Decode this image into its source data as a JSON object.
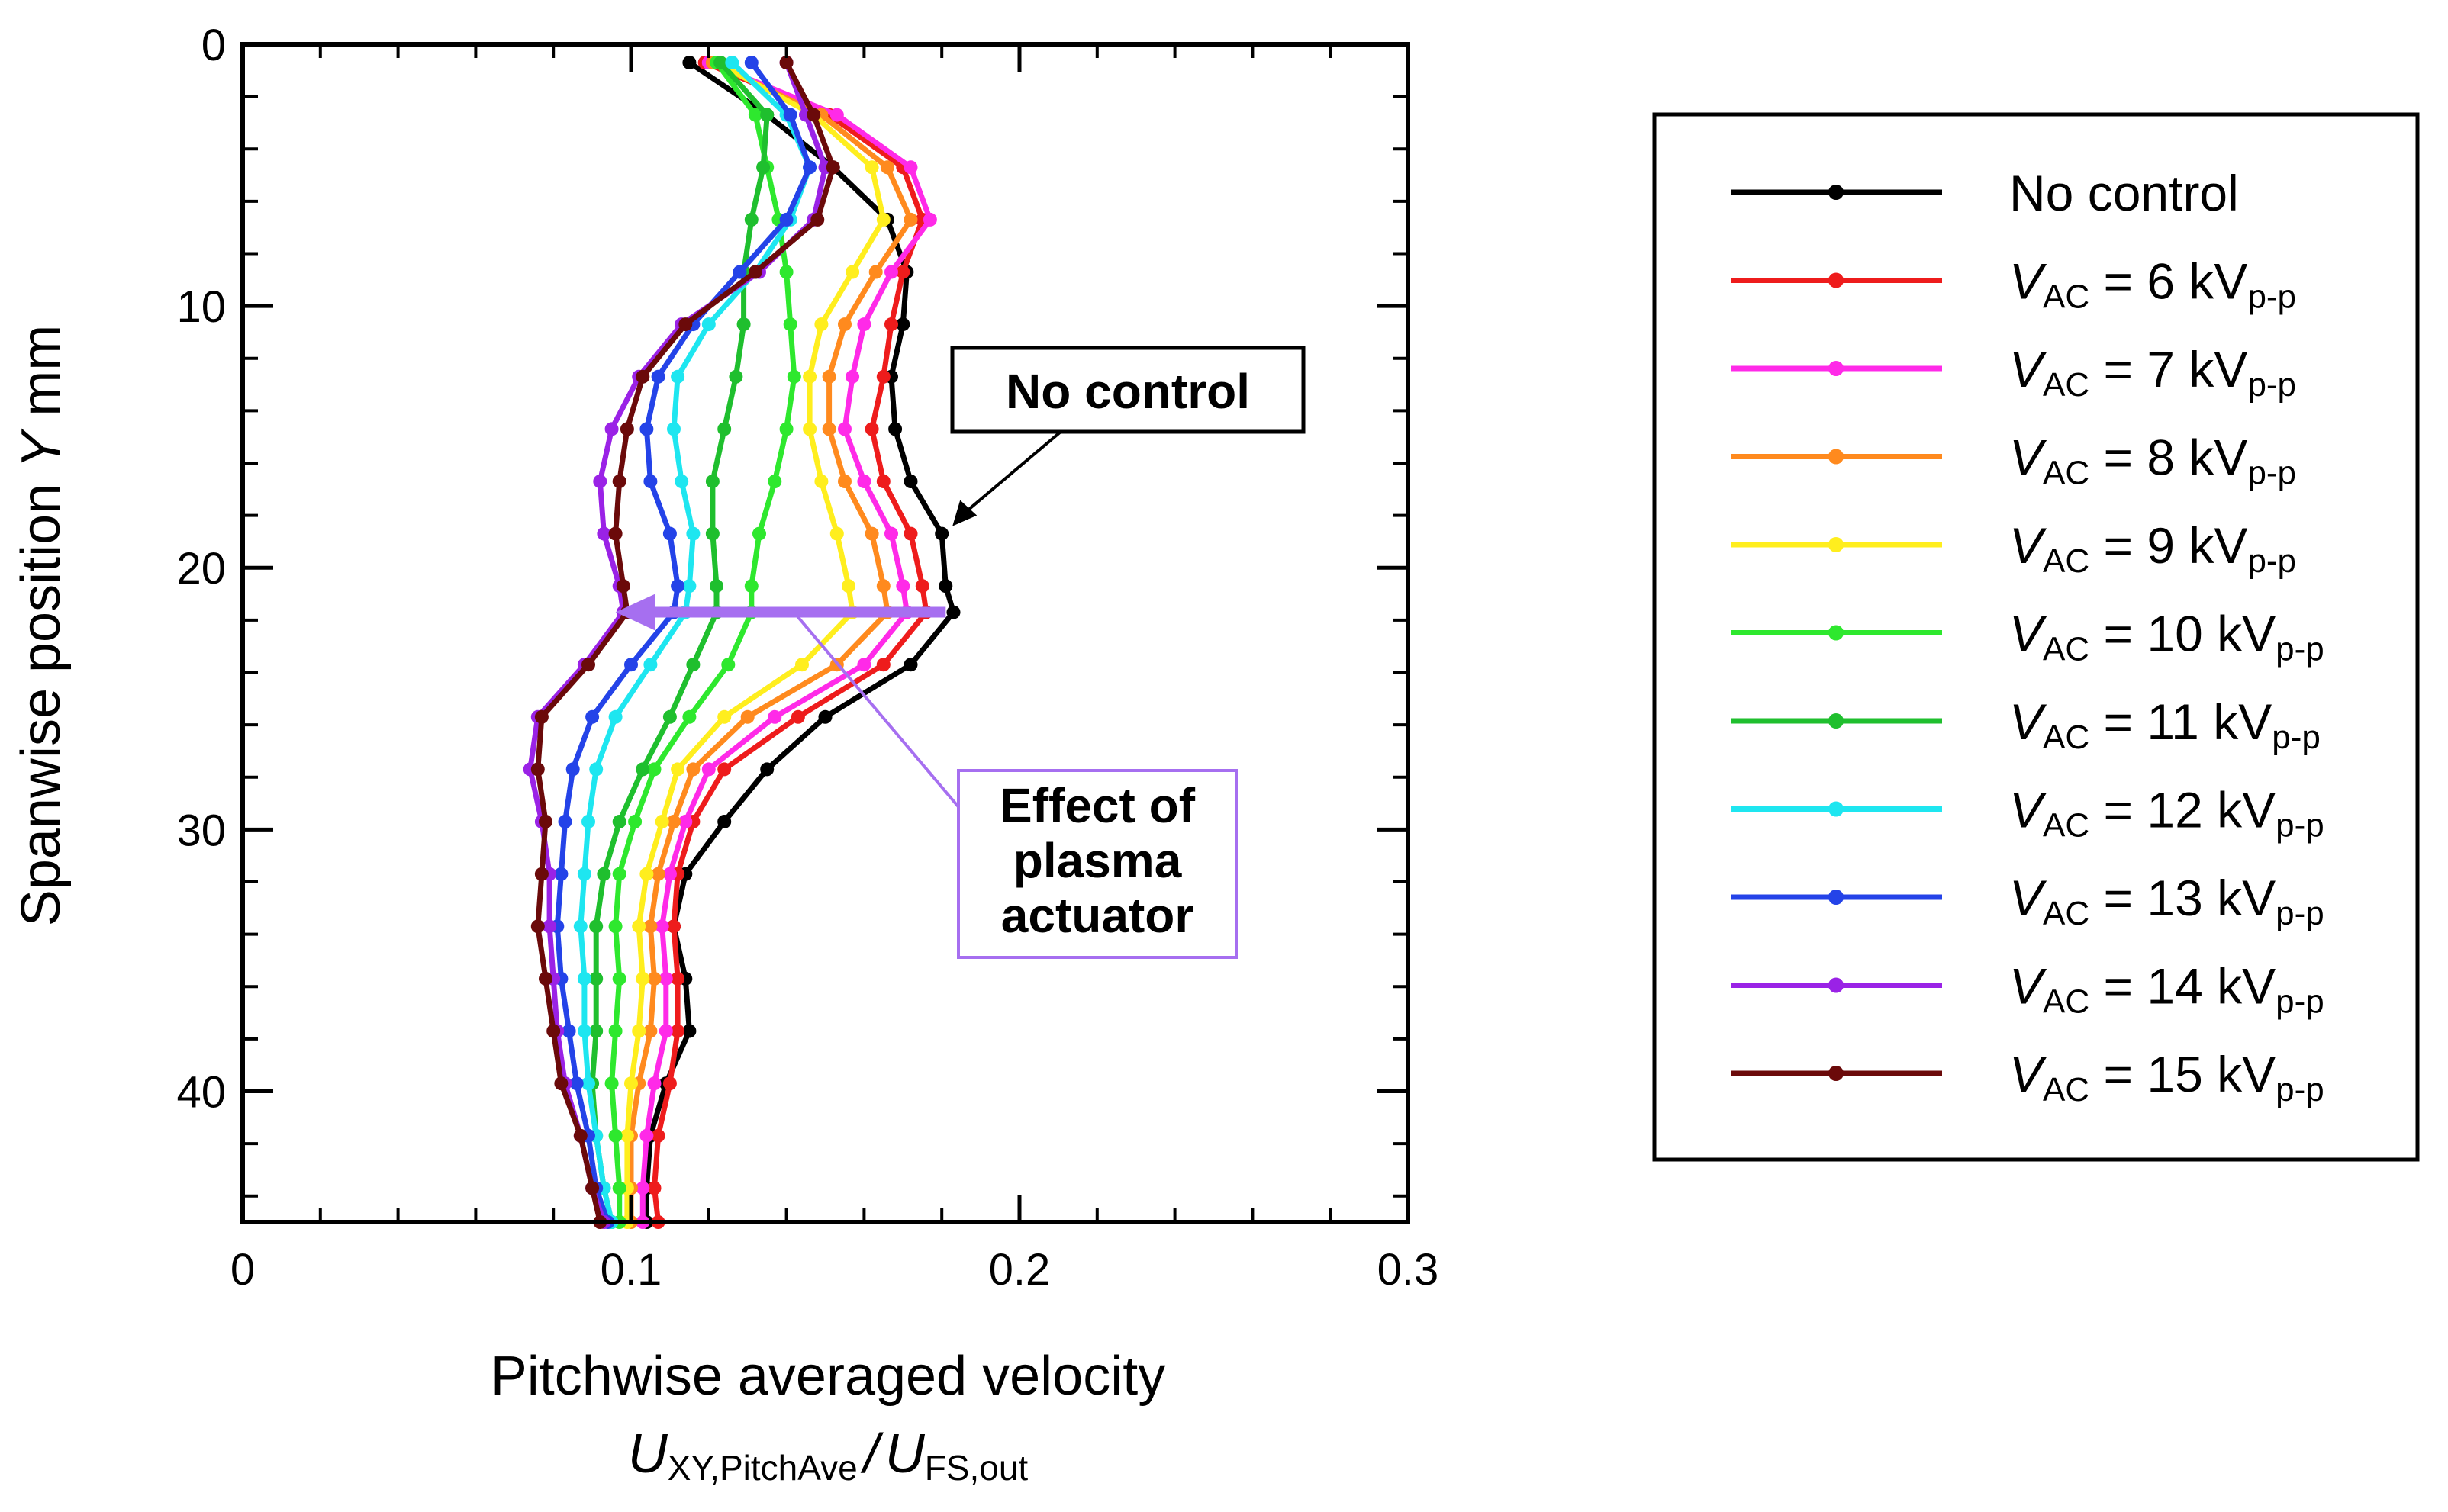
{
  "chart_data": {
    "type": "line",
    "xlabel": "Pitchwise averaged velocity",
    "xlabel_formula": {
      "var1": "U",
      "sub1": "XY,PitchAve",
      "sep": "/",
      "var2": "U",
      "sub2": "FS,out"
    },
    "ylabel": {
      "prefix": "Spanwise position ",
      "var": "Y",
      "unit": " mm"
    },
    "xlim": [
      0,
      0.3
    ],
    "ylim": [
      45,
      0
    ],
    "xticks": [
      0,
      0.1,
      0.2,
      0.3
    ],
    "xtick_labels": [
      "0",
      "0.1",
      "0.2",
      "0.3"
    ],
    "yticks": [
      0,
      10,
      20,
      30,
      40
    ],
    "ytick_labels": [
      "0",
      "10",
      "20",
      "30",
      "40"
    ],
    "legend_position": "right",
    "y": [
      0.7,
      2.7,
      4.7,
      6.7,
      8.7,
      10.7,
      12.7,
      14.7,
      16.7,
      18.7,
      20.7,
      21.7,
      23.7,
      25.7,
      27.7,
      29.7,
      31.7,
      33.7,
      35.7,
      37.7,
      39.7,
      41.7,
      43.7,
      45
    ],
    "series": [
      {
        "name": "No control",
        "voltage": "",
        "color": "#000000",
        "values": [
          0.115,
          0.135,
          0.152,
          0.166,
          0.171,
          0.17,
          0.167,
          0.168,
          0.172,
          0.18,
          0.181,
          0.183,
          0.172,
          0.15,
          0.135,
          0.124,
          0.114,
          0.111,
          0.114,
          0.115,
          0.109,
          0.105,
          0.104,
          0.104
        ]
      },
      {
        "name": "",
        "voltage": "6",
        "color": "#ee1c1c",
        "values": [
          0.119,
          0.151,
          0.17,
          0.175,
          0.17,
          0.167,
          0.165,
          0.162,
          0.165,
          0.172,
          0.175,
          0.176,
          0.165,
          0.143,
          0.124,
          0.116,
          0.112,
          0.111,
          0.112,
          0.112,
          0.11,
          0.107,
          0.106,
          0.107
        ]
      },
      {
        "name": "",
        "voltage": "7",
        "color": "#ff2ae8",
        "values": [
          0.12,
          0.153,
          0.172,
          0.177,
          0.167,
          0.16,
          0.157,
          0.155,
          0.16,
          0.167,
          0.17,
          0.171,
          0.16,
          0.137,
          0.12,
          0.114,
          0.11,
          0.108,
          0.109,
          0.109,
          0.106,
          0.104,
          0.103,
          0.103
        ]
      },
      {
        "name": "",
        "voltage": "8",
        "color": "#ff8a1e",
        "values": [
          0.121,
          0.149,
          0.166,
          0.172,
          0.163,
          0.155,
          0.151,
          0.151,
          0.155,
          0.162,
          0.165,
          0.166,
          0.153,
          0.13,
          0.116,
          0.111,
          0.107,
          0.105,
          0.106,
          0.105,
          0.102,
          0.1,
          0.1,
          0.1
        ]
      },
      {
        "name": "",
        "voltage": "9",
        "color": "#ffee1e",
        "values": [
          0.122,
          0.147,
          0.162,
          0.165,
          0.157,
          0.149,
          0.146,
          0.146,
          0.149,
          0.153,
          0.156,
          0.157,
          0.144,
          0.124,
          0.112,
          0.108,
          0.104,
          0.102,
          0.103,
          0.102,
          0.1,
          0.099,
          0.099,
          0.099
        ]
      },
      {
        "name": "",
        "voltage": "10",
        "color": "#2ee82e",
        "values": [
          0.122,
          0.132,
          0.135,
          0.138,
          0.14,
          0.141,
          0.142,
          0.14,
          0.137,
          0.133,
          0.131,
          0.131,
          0.125,
          0.115,
          0.106,
          0.101,
          0.097,
          0.096,
          0.097,
          0.096,
          0.095,
          0.096,
          0.097,
          0.097
        ]
      },
      {
        "name": "",
        "voltage": "11",
        "color": "#1fbf2e",
        "values": [
          0.123,
          0.135,
          0.134,
          0.131,
          0.129,
          0.129,
          0.127,
          0.124,
          0.121,
          0.121,
          0.122,
          0.122,
          0.116,
          0.11,
          0.103,
          0.097,
          0.093,
          0.091,
          0.091,
          0.091,
          0.09,
          0.091,
          0.093,
          0.095
        ]
      },
      {
        "name": "",
        "voltage": "12",
        "color": "#1ee6f0",
        "values": [
          0.126,
          0.14,
          0.146,
          0.141,
          0.132,
          0.12,
          0.112,
          0.111,
          0.113,
          0.116,
          0.115,
          0.114,
          0.105,
          0.096,
          0.091,
          0.089,
          0.088,
          0.087,
          0.088,
          0.088,
          0.089,
          0.091,
          0.093,
          0.095
        ]
      },
      {
        "name": "",
        "voltage": "13",
        "color": "#2443e8",
        "values": [
          0.131,
          0.141,
          0.146,
          0.14,
          0.128,
          0.116,
          0.107,
          0.104,
          0.105,
          0.11,
          0.112,
          0.111,
          0.1,
          0.09,
          0.085,
          0.083,
          0.082,
          0.081,
          0.082,
          0.084,
          0.086,
          0.089,
          0.091,
          0.094
        ]
      },
      {
        "name": "",
        "voltage": "14",
        "color": "#9a22e6",
        "values": [
          0.14,
          0.145,
          0.15,
          0.147,
          0.133,
          0.113,
          0.102,
          0.095,
          0.092,
          0.093,
          0.097,
          0.098,
          0.088,
          0.076,
          0.074,
          0.077,
          0.079,
          0.079,
          0.08,
          0.081,
          0.083,
          0.087,
          0.09,
          0.093
        ]
      },
      {
        "name": "",
        "voltage": "15",
        "color": "#6b0a0a",
        "values": [
          0.14,
          0.147,
          0.152,
          0.148,
          0.132,
          0.114,
          0.103,
          0.099,
          0.097,
          0.096,
          0.098,
          0.099,
          0.089,
          0.077,
          0.076,
          0.078,
          0.077,
          0.076,
          0.078,
          0.08,
          0.082,
          0.087,
          0.09,
          0.092
        ]
      }
    ],
    "legend": {
      "var": "V",
      "var_sub": "AC",
      "eq": " = ",
      "unit": " kV",
      "unit_sub": "p-p"
    },
    "annotations": {
      "no_control_box": "No control",
      "effect_lines": [
        "Effect of",
        "plasma",
        "actuator"
      ],
      "effect_color": "#a66ff0",
      "arrow_y": 21.7,
      "arrow_from_x": 0.181,
      "arrow_to_x": 0.096
    }
  }
}
